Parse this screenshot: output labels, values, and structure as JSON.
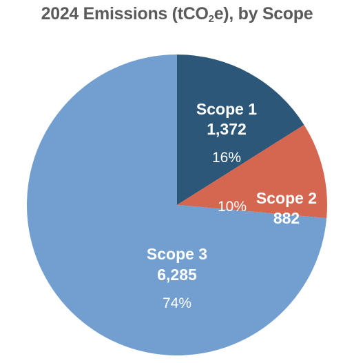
{
  "chart_data": {
    "type": "pie",
    "title_pre": "2024 Emissions (tCO",
    "title_sub": "2",
    "title_post": "e), by Scope",
    "start": "12 o'clock",
    "direction": "clockwise",
    "slices": [
      {
        "label": "Scope 1",
        "value": 1372,
        "value_label": "1,372",
        "percent_label": "16%",
        "color": "#2d5778"
      },
      {
        "label": "Scope 2",
        "value": 882,
        "value_label": "882",
        "percent_label": "10%",
        "color": "#d56750"
      },
      {
        "label": "Scope 3",
        "value": 6285,
        "value_label": "6,285",
        "percent_label": "74%",
        "color": "#729fcf"
      }
    ]
  }
}
